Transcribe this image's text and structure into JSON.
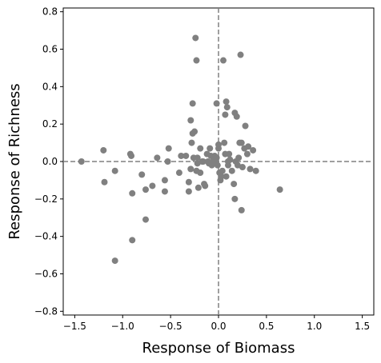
{
  "chart_data": {
    "type": "scatter",
    "title": "",
    "xlabel": "Response of Biomass",
    "ylabel": "Response of Richness",
    "xlim": [
      -1.62,
      1.62
    ],
    "ylim": [
      -0.82,
      0.82
    ],
    "xticks": [
      -1.5,
      -1.0,
      -0.5,
      0.0,
      0.5,
      1.0,
      1.5
    ],
    "xtick_labels": [
      "−1.5",
      "−1.0",
      "−0.5",
      "0.0",
      "0.5",
      "1.0",
      "1.5"
    ],
    "yticks": [
      -0.8,
      -0.6,
      -0.4,
      -0.2,
      0.0,
      0.2,
      0.4,
      0.6,
      0.8
    ],
    "ytick_labels": [
      "−0.8",
      "−0.6",
      "−0.4",
      "−0.2",
      "0.0",
      "0.2",
      "0.4",
      "0.6",
      "0.8"
    ],
    "grid": false,
    "reference_lines": {
      "x": 0.0,
      "y": 0.0,
      "style": "dashed"
    },
    "marker_color": "#808080",
    "reference_line_color": "#808080",
    "series": [
      {
        "points": [
          [
            -1.43,
            0.0
          ],
          [
            -1.2,
            0.06
          ],
          [
            -1.19,
            -0.11
          ],
          [
            -1.08,
            -0.05
          ],
          [
            -1.08,
            -0.53
          ],
          [
            -0.92,
            0.04
          ],
          [
            -0.91,
            0.03
          ],
          [
            -0.9,
            -0.17
          ],
          [
            -0.9,
            -0.42
          ],
          [
            -0.8,
            -0.07
          ],
          [
            -0.76,
            -0.15
          ],
          [
            -0.76,
            -0.31
          ],
          [
            -0.69,
            -0.13
          ],
          [
            -0.64,
            0.02
          ],
          [
            -0.56,
            -0.16
          ],
          [
            -0.56,
            -0.1
          ],
          [
            -0.53,
            0.0
          ],
          [
            -0.52,
            0.07
          ],
          [
            -0.41,
            -0.06
          ],
          [
            -0.39,
            0.03
          ],
          [
            -0.34,
            0.03
          ],
          [
            -0.31,
            -0.16
          ],
          [
            -0.31,
            -0.11
          ],
          [
            -0.29,
            0.22
          ],
          [
            -0.29,
            -0.04
          ],
          [
            -0.28,
            0.1
          ],
          [
            -0.27,
            0.15
          ],
          [
            -0.27,
            0.31
          ],
          [
            -0.26,
            0.02
          ],
          [
            -0.25,
            0.16
          ],
          [
            -0.24,
            0.66
          ],
          [
            -0.23,
            0.54
          ],
          [
            -0.23,
            -0.05
          ],
          [
            -0.22,
            0.02
          ],
          [
            -0.22,
            -0.01
          ],
          [
            -0.21,
            -0.14
          ],
          [
            -0.19,
            0.07
          ],
          [
            -0.19,
            -0.06
          ],
          [
            -0.17,
            0.0
          ],
          [
            -0.16,
            0.0
          ],
          [
            -0.15,
            -0.12
          ],
          [
            -0.14,
            -0.13
          ],
          [
            -0.12,
            0.04
          ],
          [
            -0.11,
            0.0
          ],
          [
            -0.1,
            -0.01
          ],
          [
            -0.09,
            0.07
          ],
          [
            -0.08,
            0.03
          ],
          [
            -0.07,
            -0.02
          ],
          [
            -0.05,
            0.01
          ],
          [
            -0.04,
            0.03
          ],
          [
            -0.03,
            0.0
          ],
          [
            -0.02,
            0.02
          ],
          [
            -0.02,
            0.31
          ],
          [
            -0.01,
            -0.02
          ],
          [
            0.0,
            0.07
          ],
          [
            0.0,
            0.09
          ],
          [
            0.01,
            -0.06
          ],
          [
            0.02,
            -0.1
          ],
          [
            0.03,
            -0.08
          ],
          [
            0.04,
            -0.05
          ],
          [
            0.05,
            0.54
          ],
          [
            0.06,
            0.1
          ],
          [
            0.07,
            0.25
          ],
          [
            0.07,
            0.04
          ],
          [
            0.08,
            0.32
          ],
          [
            0.08,
            -0.08
          ],
          [
            0.09,
            0.29
          ],
          [
            0.1,
            0.0
          ],
          [
            0.1,
            -0.02
          ],
          [
            0.11,
            0.04
          ],
          [
            0.12,
            0.01
          ],
          [
            0.14,
            -0.05
          ],
          [
            0.16,
            -0.12
          ],
          [
            0.17,
            0.26
          ],
          [
            0.17,
            -0.2
          ],
          [
            0.18,
            0.0
          ],
          [
            0.19,
            0.24
          ],
          [
            0.2,
            -0.02
          ],
          [
            0.21,
            0.02
          ],
          [
            0.22,
            0.1
          ],
          [
            0.23,
            0.57
          ],
          [
            0.24,
            -0.26
          ],
          [
            0.24,
            0.1
          ],
          [
            0.25,
            -0.03
          ],
          [
            0.27,
            0.07
          ],
          [
            0.28,
            0.19
          ],
          [
            0.3,
            0.04
          ],
          [
            0.31,
            0.08
          ],
          [
            0.33,
            -0.04
          ],
          [
            0.36,
            0.06
          ],
          [
            0.39,
            -0.05
          ],
          [
            0.64,
            -0.15
          ]
        ]
      }
    ]
  }
}
